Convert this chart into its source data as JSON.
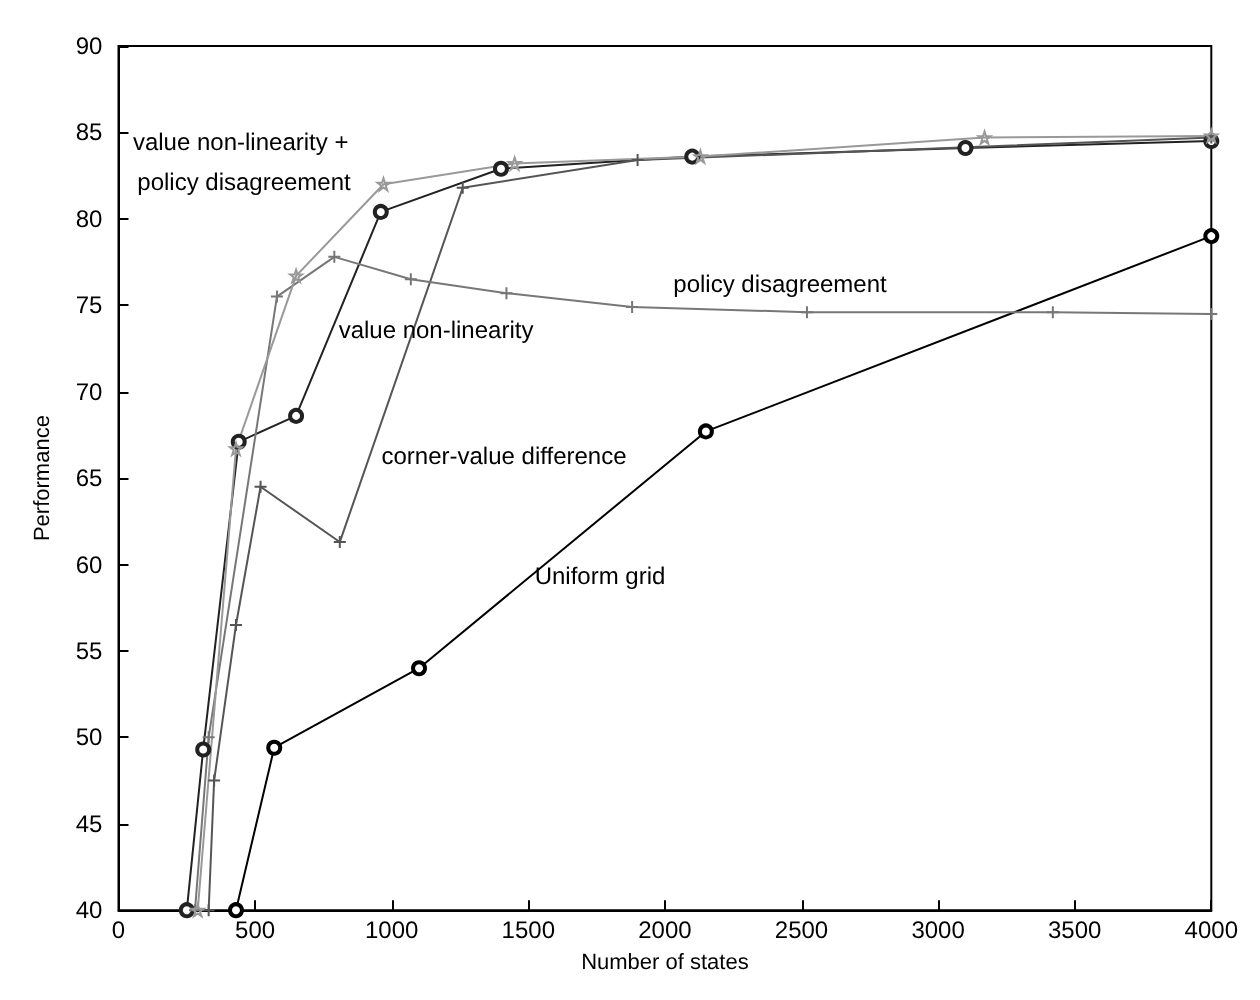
{
  "chart_data": {
    "type": "line",
    "xlabel": "Number of states",
    "ylabel": "Performance",
    "xlim": [
      0,
      4000
    ],
    "xticks": [
      0,
      500,
      1000,
      1500,
      2000,
      2500,
      3000,
      3500,
      4000
    ],
    "ylim": [
      40,
      90
    ],
    "yticks": [
      40,
      45,
      50,
      55,
      60,
      65,
      70,
      75,
      80,
      85,
      90
    ],
    "grid": false,
    "legend": false,
    "line_style": "solid",
    "series": [
      {
        "name": "Uniform grid",
        "color": "#000000",
        "marker": "circle",
        "x": [
          430,
          570,
          1100,
          2150,
          4000
        ],
        "values": [
          40,
          49.4,
          54,
          67.7,
          79
        ]
      },
      {
        "name": "value non-linearity",
        "color": "#222222",
        "marker": "circle",
        "x": [
          250,
          310,
          440,
          650,
          960,
          1400,
          2100,
          3100,
          4000
        ],
        "values": [
          40,
          49.3,
          67.1,
          68.6,
          80.4,
          82.9,
          83.6,
          84.1,
          84.5
        ]
      },
      {
        "name": "corner-value difference",
        "color": "#555555",
        "marker": "cross",
        "x": [
          330,
          350,
          430,
          520,
          810,
          1260,
          1900,
          4000
        ],
        "values": [
          40,
          47.5,
          56.5,
          64.5,
          61.3,
          81.8,
          83.4,
          84.7
        ]
      },
      {
        "name": "policy disagreement",
        "color": "#777777",
        "marker": "cross",
        "x": [
          280,
          330,
          580,
          790,
          1070,
          1420,
          1880,
          2520,
          3420,
          4000
        ],
        "values": [
          40,
          50,
          75.5,
          77.8,
          76.5,
          75.7,
          74.9,
          74.6,
          74.6,
          74.5
        ]
      },
      {
        "name": "value non-linearity + policy disagreement",
        "color": "#999999",
        "marker": "star",
        "x": [
          290,
          430,
          650,
          970,
          1450,
          2130,
          3170,
          4000
        ],
        "values": [
          40,
          66.7,
          76.7,
          82,
          83.2,
          83.6,
          84.7,
          84.8
        ]
      }
    ]
  }
}
